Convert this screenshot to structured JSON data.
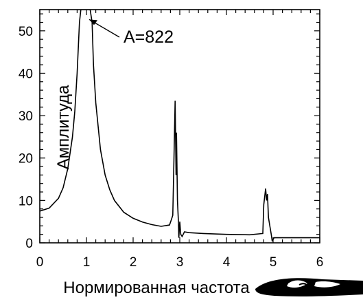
{
  "chart_data": {
    "type": "line",
    "xlabel": "Нормированная частота",
    "ylabel": "Амплитуда",
    "xlim": [
      0,
      6
    ],
    "ylim": [
      0,
      55
    ],
    "x_ticks": [
      "0",
      "1",
      "2",
      "3",
      "4",
      "5",
      "6"
    ],
    "y_ticks": [
      "0",
      "10",
      "20",
      "30",
      "40",
      "50"
    ],
    "grid": false,
    "annotation": {
      "text": "A=822",
      "x": 1.0,
      "y": 53
    },
    "series": [
      {
        "x": [
          0,
          0.2,
          0.4,
          0.5,
          0.6,
          0.7,
          0.75,
          0.8,
          0.85,
          0.88,
          0.92,
          0.95,
          0.97,
          1.0,
          1.03,
          1.05,
          1.08,
          1.12,
          1.15,
          1.2,
          1.3,
          1.4,
          1.5,
          1.6,
          1.8,
          2.0,
          2.2,
          2.4,
          2.6,
          2.78,
          2.82,
          2.85,
          2.88,
          2.9,
          2.92,
          2.93,
          2.95,
          2.97,
          2.98,
          3.0,
          3.02,
          3.05,
          3.1,
          3.2,
          3.5,
          4.0,
          4.5,
          4.78,
          4.8,
          4.82,
          4.84,
          4.86,
          4.88,
          4.9,
          4.93,
          4.96,
          4.98,
          5.0,
          5.02,
          5.05,
          5.5,
          6.0
        ],
        "y": [
          7.5,
          8.2,
          10.5,
          13,
          17.5,
          25,
          31,
          40,
          52,
          55,
          55,
          55,
          55,
          55,
          55,
          55,
          55,
          52,
          42,
          33,
          22,
          16,
          12.5,
          10,
          7.2,
          5.8,
          4.9,
          4.3,
          3.9,
          4.2,
          5.5,
          6.5,
          22,
          33.5,
          16,
          26,
          10,
          5,
          1.2,
          5,
          2,
          1.5,
          2.6,
          2.4,
          2.2,
          2.0,
          1.9,
          2.2,
          9,
          11,
          12.8,
          10,
          11.5,
          6,
          4,
          2,
          0.5,
          0.8,
          1.2,
          1.2,
          1.2,
          1.2
        ]
      }
    ]
  }
}
